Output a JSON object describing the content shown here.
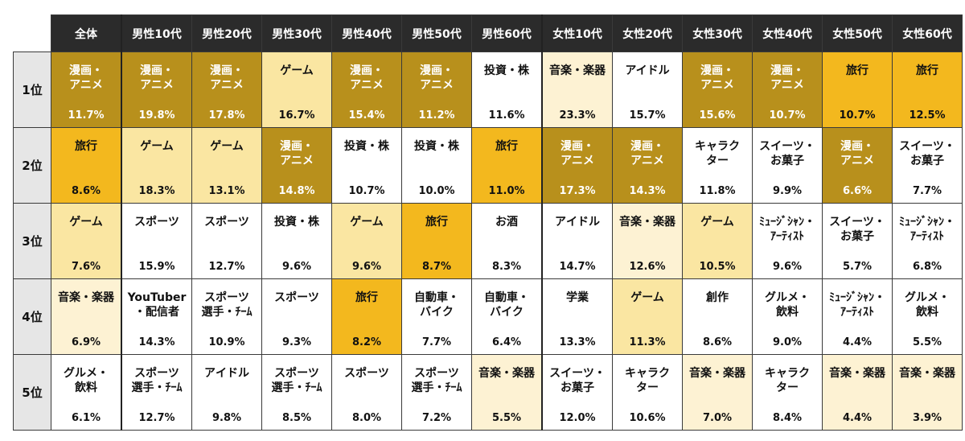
{
  "chart_data": {
    "type": "table",
    "columns": [
      "全体",
      "男性10代",
      "男性20代",
      "男性30代",
      "男性40代",
      "男性50代",
      "男性60代",
      "女性10代",
      "女性20代",
      "女性30代",
      "女性40代",
      "女性50代",
      "女性60代"
    ],
    "ranks": [
      "1位",
      "2位",
      "3位",
      "4位",
      "5位"
    ],
    "cells": [
      [
        {
          "label": "漫画・\nアニメ",
          "value": "11.7%"
        },
        {
          "label": "漫画・\nアニメ",
          "value": "19.8%"
        },
        {
          "label": "漫画・\nアニメ",
          "value": "17.8%"
        },
        {
          "label": "ゲーム",
          "value": "16.7%"
        },
        {
          "label": "漫画・\nアニメ",
          "value": "15.4%"
        },
        {
          "label": "漫画・\nアニメ",
          "value": "11.2%"
        },
        {
          "label": "投資・株",
          "value": "11.6%"
        },
        {
          "label": "音楽・楽器",
          "value": "23.3%"
        },
        {
          "label": "アイドル",
          "value": "15.7%"
        },
        {
          "label": "漫画・\nアニメ",
          "value": "15.6%"
        },
        {
          "label": "漫画・\nアニメ",
          "value": "10.7%"
        },
        {
          "label": "旅行",
          "value": "10.7%"
        },
        {
          "label": "旅行",
          "value": "12.5%"
        }
      ],
      [
        {
          "label": "旅行",
          "value": "8.6%"
        },
        {
          "label": "ゲーム",
          "value": "18.3%"
        },
        {
          "label": "ゲーム",
          "value": "13.1%"
        },
        {
          "label": "漫画・\nアニメ",
          "value": "14.8%"
        },
        {
          "label": "投資・株",
          "value": "10.7%"
        },
        {
          "label": "投資・株",
          "value": "10.0%"
        },
        {
          "label": "旅行",
          "value": "11.0%"
        },
        {
          "label": "漫画・\nアニメ",
          "value": "17.3%"
        },
        {
          "label": "漫画・\nアニメ",
          "value": "14.3%"
        },
        {
          "label": "キャラク\nター",
          "value": "11.8%"
        },
        {
          "label": "スイーツ・\nお菓子",
          "value": "9.9%"
        },
        {
          "label": "漫画・\nアニメ",
          "value": "6.6%"
        },
        {
          "label": "スイーツ・\nお菓子",
          "value": "7.7%"
        }
      ],
      [
        {
          "label": "ゲーム",
          "value": "7.6%"
        },
        {
          "label": "スポーツ",
          "value": "15.9%"
        },
        {
          "label": "スポーツ",
          "value": "12.7%"
        },
        {
          "label": "投資・株",
          "value": "9.6%"
        },
        {
          "label": "ゲーム",
          "value": "9.6%"
        },
        {
          "label": "旅行",
          "value": "8.7%"
        },
        {
          "label": "お酒",
          "value": "8.3%"
        },
        {
          "label": "アイドル",
          "value": "14.7%"
        },
        {
          "label": "音楽・楽器",
          "value": "12.6%"
        },
        {
          "label": "ゲーム",
          "value": "10.5%"
        },
        {
          "label": "ﾐｭｰｼﾞｼｬﾝ・\nｱｰﾃｨｽﾄ",
          "value": "9.6%"
        },
        {
          "label": "スイーツ・\nお菓子",
          "value": "5.7%"
        },
        {
          "label": "ﾐｭｰｼﾞｼｬﾝ・\nｱｰﾃｨｽﾄ",
          "value": "6.8%"
        }
      ],
      [
        {
          "label": "音楽・楽器",
          "value": "6.9%"
        },
        {
          "label": "YouTuber\n・配信者",
          "value": "14.3%"
        },
        {
          "label": "スポーツ\n選手・ﾁｰﾑ",
          "value": "10.9%"
        },
        {
          "label": "スポーツ",
          "value": "9.3%"
        },
        {
          "label": "旅行",
          "value": "8.2%"
        },
        {
          "label": "自動車・\nバイク",
          "value": "7.7%"
        },
        {
          "label": "自動車・\nバイク",
          "value": "6.4%"
        },
        {
          "label": "学業",
          "value": "13.3%"
        },
        {
          "label": "ゲーム",
          "value": "11.3%"
        },
        {
          "label": "創作",
          "value": "8.6%"
        },
        {
          "label": "グルメ・\n飲料",
          "value": "9.0%"
        },
        {
          "label": "ﾐｭｰｼﾞｼｬﾝ・\nｱｰﾃｨｽﾄ",
          "value": "4.4%"
        },
        {
          "label": "グルメ・\n飲料",
          "value": "5.5%"
        }
      ],
      [
        {
          "label": "グルメ・\n飲料",
          "value": "6.1%"
        },
        {
          "label": "スポーツ\n選手・ﾁｰﾑ",
          "value": "12.7%"
        },
        {
          "label": "アイドル",
          "value": "9.8%"
        },
        {
          "label": "スポーツ\n選手・ﾁｰﾑ",
          "value": "8.5%"
        },
        {
          "label": "スポーツ",
          "value": "8.0%"
        },
        {
          "label": "スポーツ\n選手・ﾁｰﾑ",
          "value": "7.2%"
        },
        {
          "label": "音楽・楽器",
          "value": "5.5%"
        },
        {
          "label": "スイーツ・\nお菓子",
          "value": "12.0%"
        },
        {
          "label": "キャラク\nター",
          "value": "10.6%"
        },
        {
          "label": "音楽・楽器",
          "value": "7.0%"
        },
        {
          "label": "キャラク\nター",
          "value": "8.4%"
        },
        {
          "label": "音楽・楽器",
          "value": "4.4%"
        },
        {
          "label": "音楽・楽器",
          "value": "3.9%"
        }
      ]
    ],
    "category_colors": {
      "漫画・アニメ": "#b8901c",
      "旅行": "#f3b81e",
      "ゲーム": "#fae6a2",
      "音楽・楽器": "#fdf2d3",
      "other": "#ffffff"
    }
  }
}
